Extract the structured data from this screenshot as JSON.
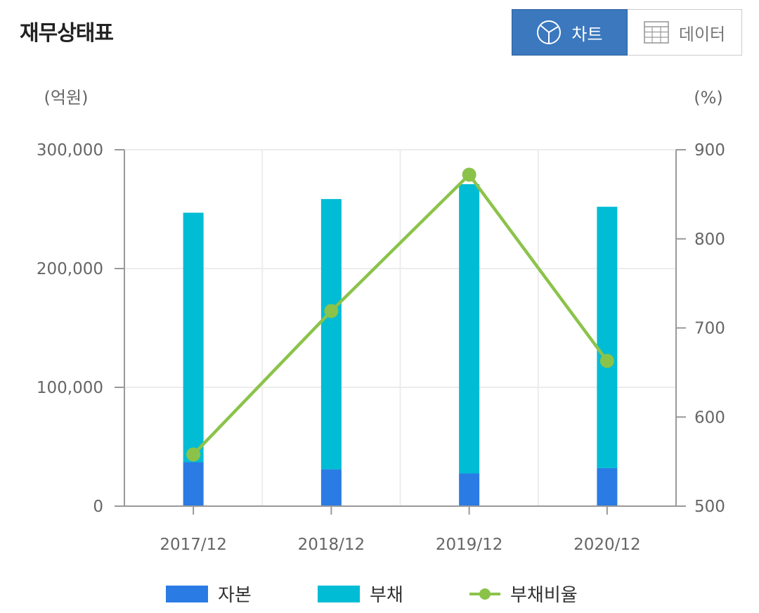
{
  "header": {
    "title": "재무상태표",
    "chart_button_label": "차트",
    "data_button_label": "데이터"
  },
  "chart_data": {
    "type": "bar",
    "stacked": true,
    "categories": [
      "2017/12",
      "2018/12",
      "2019/12",
      "2020/12"
    ],
    "series": [
      {
        "name": "자본",
        "type": "bar",
        "axis": "left",
        "color": "#2a7be4",
        "values": [
          37000,
          31000,
          27500,
          32000
        ]
      },
      {
        "name": "부채",
        "type": "bar",
        "axis": "left",
        "color": "#00bcd4",
        "values": [
          210000,
          227500,
          243500,
          220000
        ]
      },
      {
        "name": "부채비율",
        "type": "line",
        "axis": "right",
        "color": "#8bc34a",
        "values": [
          558,
          719,
          872,
          663
        ]
      }
    ],
    "left_axis": {
      "unit": "(억원)",
      "ylim": [
        0,
        300000
      ],
      "ticks": [
        0,
        100000,
        200000,
        300000
      ],
      "tick_labels": [
        "0",
        "100,000",
        "200,000",
        "300,000"
      ]
    },
    "right_axis": {
      "unit": "(%)",
      "ylim": [
        500,
        900
      ],
      "ticks": [
        500,
        600,
        700,
        800,
        900
      ],
      "tick_labels": [
        "500",
        "600",
        "700",
        "800",
        "900"
      ]
    },
    "grid": true,
    "legend_position": "bottom"
  },
  "legend": {
    "equity": "자본",
    "debt": "부채",
    "debt_ratio": "부채비율"
  },
  "colors": {
    "equity": "#2a7be4",
    "debt": "#00bcd4",
    "ratio": "#8bc34a",
    "accent": "#3b78be"
  }
}
